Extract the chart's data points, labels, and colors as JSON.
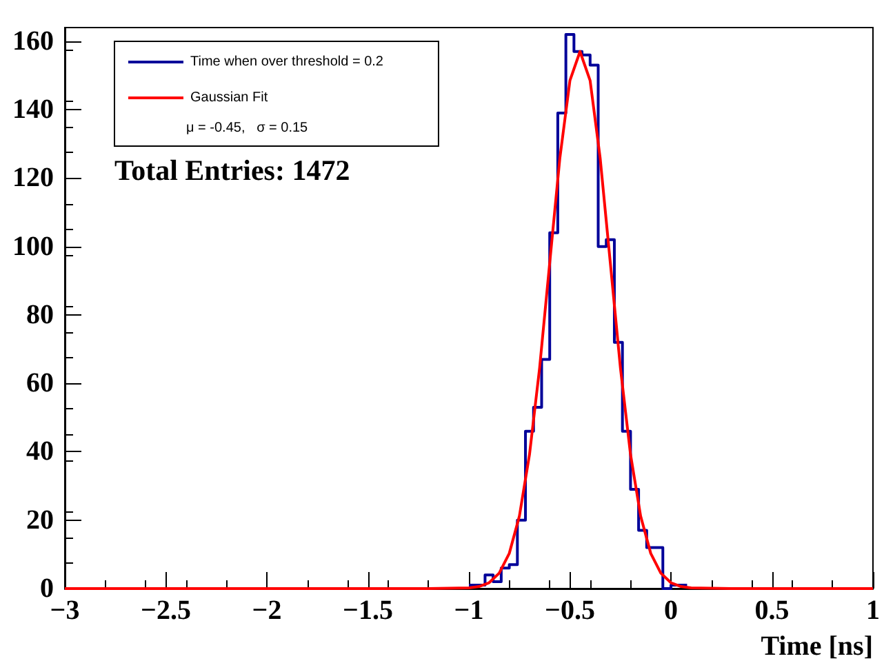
{
  "chart_data": {
    "type": "histogram",
    "xlabel": "Time [ns]",
    "bins": [
      -1,
      -0.96,
      -0.92,
      -0.88,
      -0.84,
      -0.8,
      -0.76,
      -0.72,
      -0.68,
      -0.64,
      -0.6,
      -0.56,
      -0.52,
      -0.48,
      -0.44,
      -0.4,
      -0.36,
      -0.32,
      -0.28,
      -0.24,
      -0.2,
      -0.16,
      -0.12,
      -0.08,
      -0.04,
      0,
      0.04,
      0.08
    ],
    "series": [
      {
        "name": "Time when over threshold = 0.2",
        "color": "#000099",
        "values": [
          1,
          1,
          4,
          2,
          6,
          7,
          20,
          46,
          53,
          67,
          104,
          139,
          162,
          157,
          156,
          153,
          100,
          102,
          72,
          46,
          29,
          17,
          12,
          12,
          0,
          1,
          1
        ]
      },
      {
        "name": "Gaussian Fit",
        "type": "line",
        "color": "#ff0000",
        "x": [
          -3,
          -1.2,
          -1,
          -0.95,
          -0.9,
          -0.85,
          -0.8,
          -0.75,
          -0.7,
          -0.65,
          -0.6,
          -0.55,
          -0.5,
          -0.45,
          -0.4,
          -0.35,
          -0.3,
          -0.25,
          -0.2,
          -0.15,
          -0.1,
          -0.05,
          0,
          0.05,
          0.1,
          0.3,
          1
        ],
        "values": [
          0,
          0,
          0.2,
          0.6,
          1.7,
          4.5,
          10.3,
          21.2,
          39.2,
          64.5,
          95.2,
          125.7,
          148.5,
          157,
          148.5,
          125.7,
          95.2,
          64.5,
          39.2,
          21.2,
          10.3,
          4.5,
          1.7,
          0.6,
          0.2,
          0,
          0
        ]
      }
    ],
    "xlim": [
      -3,
      1
    ],
    "xticks": [
      -3,
      -2.5,
      -2,
      -1.5,
      -1,
      -0.5,
      0,
      0.5,
      1
    ],
    "ylim": [
      0,
      164
    ],
    "yticks": [
      0,
      20,
      40,
      60,
      80,
      100,
      120,
      140,
      160
    ],
    "annotations": [
      "μ = -0.45,   σ = 0.15",
      "Total Entries: 1472"
    ],
    "legend": "top left",
    "grid": false,
    "marker": "none",
    "line_style": "solid"
  }
}
